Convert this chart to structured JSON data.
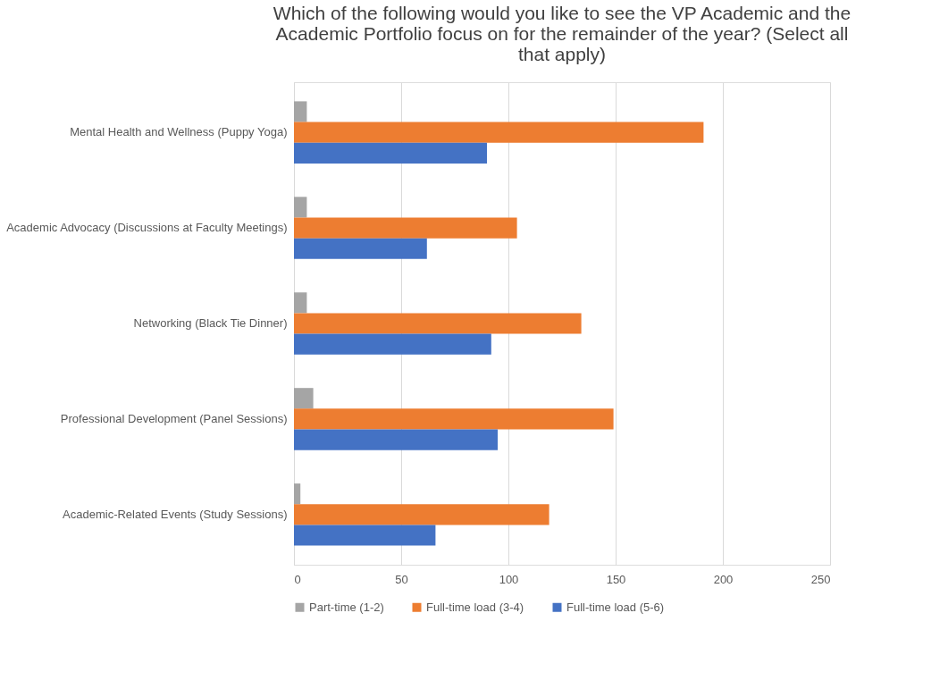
{
  "chart_data": {
    "type": "bar",
    "orientation": "horizontal",
    "title": "Which of the following would you like to see the VP Academic and the Academic Portfolio focus on for the remainder of the year? (Select all that apply)",
    "categories": [
      "Mental Health and Wellness (Puppy Yoga)",
      "Academic Advocacy (Discussions at Faculty Meetings)",
      "Networking (Black Tie Dinner)",
      "Professional Development (Panel Sessions)",
      "Academic-Related Events (Study Sessions)"
    ],
    "series": [
      {
        "name": "Part-time (1-2)",
        "color": "#a5a5a5",
        "values": [
          6,
          6,
          6,
          9,
          3
        ]
      },
      {
        "name": "Full-time load (3-4)",
        "color": "#ed7d31",
        "values": [
          191,
          104,
          134,
          149,
          119
        ]
      },
      {
        "name": "Full-time load (5-6)",
        "color": "#4472c4",
        "values": [
          90,
          62,
          92,
          95,
          66
        ]
      }
    ],
    "xlim": [
      0,
      250
    ],
    "xticks": [
      0,
      50,
      100,
      150,
      200,
      250
    ],
    "grid": "x",
    "legend": "bottom"
  }
}
